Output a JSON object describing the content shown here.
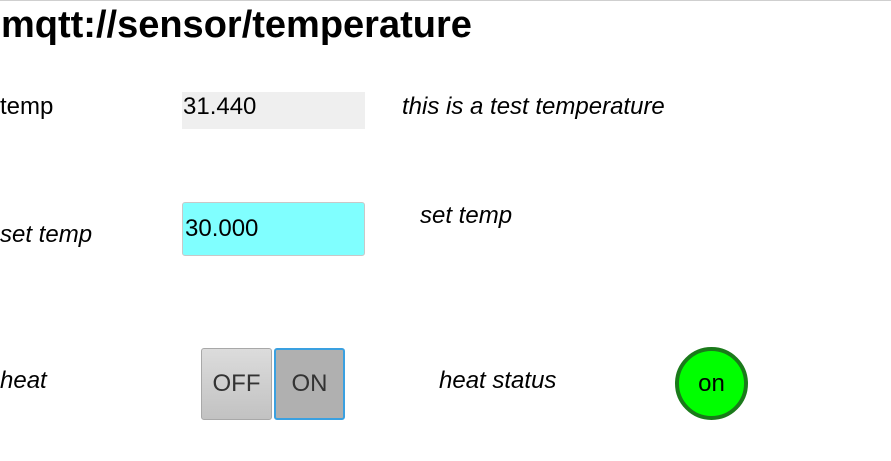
{
  "page": {
    "title": "mqtt://sensor/temperature"
  },
  "temp": {
    "label": "temp",
    "value": "31.440",
    "description": "this is a  test temperature"
  },
  "set_temp": {
    "label": "set temp",
    "value": "30.000",
    "description": "set temp",
    "color": "#80ffff"
  },
  "heat": {
    "label": "heat",
    "off_label": "OFF",
    "on_label": "ON",
    "selected": "ON",
    "status_label": "heat status",
    "status_value": "on",
    "status_color": "#00ff00"
  }
}
